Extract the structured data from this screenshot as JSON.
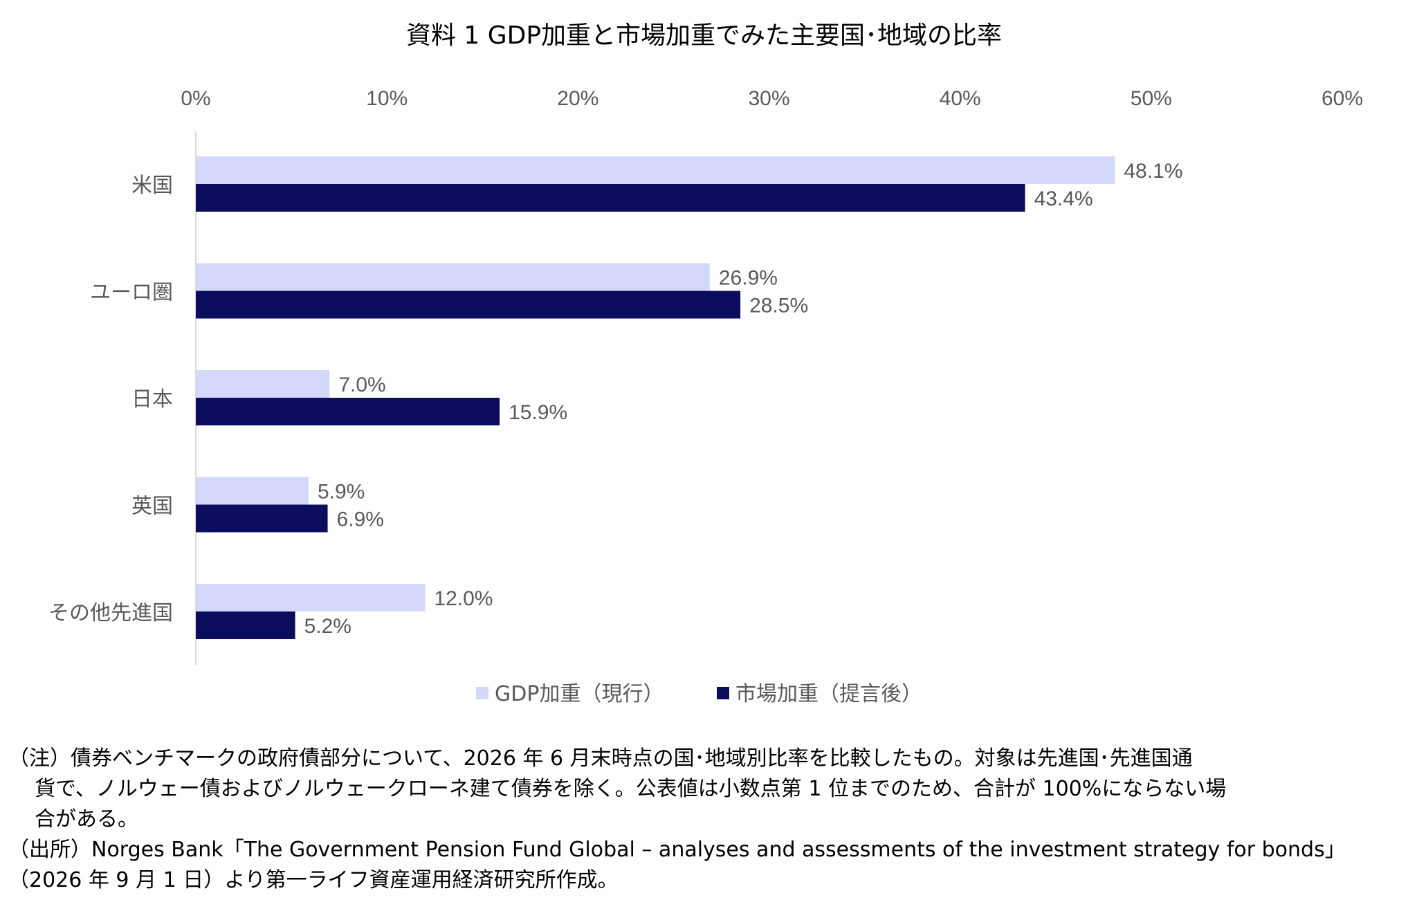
{
  "title": "資料 1 GDP加重と市場加重でみた主要国･地域の比率",
  "colors": {
    "gdp": "#d4d9fb",
    "market": "#0c0c5c",
    "tick_text": "#595959",
    "axis_line": "#d9d9d9"
  },
  "chart_data": {
    "type": "bar",
    "orientation": "horizontal",
    "title": "資料 1 GDP加重と市場加重でみた主要国･地域の比率",
    "categories": [
      "米国",
      "ユーロ圏",
      "日本",
      "英国",
      "その他先進国"
    ],
    "series": [
      {
        "name": "GDP加重（現行）",
        "values": [
          48.1,
          26.9,
          7.0,
          5.9,
          12.0
        ],
        "labels": [
          "48.1%",
          "26.9%",
          "7.0%",
          "5.9%",
          "12.0%"
        ]
      },
      {
        "name": "市場加重（提言後）",
        "values": [
          43.4,
          28.5,
          15.9,
          6.9,
          5.2
        ],
        "labels": [
          "43.4%",
          "28.5%",
          "15.9%",
          "6.9%",
          "5.2%"
        ]
      }
    ],
    "xlim": [
      0,
      60
    ],
    "ticks": [
      0,
      10,
      20,
      30,
      40,
      50,
      60
    ],
    "tick_labels": [
      "0%",
      "10%",
      "20%",
      "30%",
      "40%",
      "50%",
      "60%"
    ],
    "x_axis_position": "top",
    "grid": false,
    "legend_position": "bottom"
  },
  "notes": {
    "note_line1": "（注）債券ベンチマークの政府債部分について、2026 年 6 月末時点の国･地域別比率を比較したもの。対象は先進国･先進国通",
    "note_line2": "貨で、ノルウェー債およびノルウェークローネ建て債券を除く。公表値は小数点第 1 位までのため、合計が 100%にならない場",
    "note_line3": "合がある。",
    "source_line1": "（出所）Norges Bank「The Government Pension Fund Global – analyses and assessments of the investment strategy for bonds」",
    "source_line2": "（2026 年 9 月 1 日）より第一ライフ資産運用経済研究所作成。"
  }
}
